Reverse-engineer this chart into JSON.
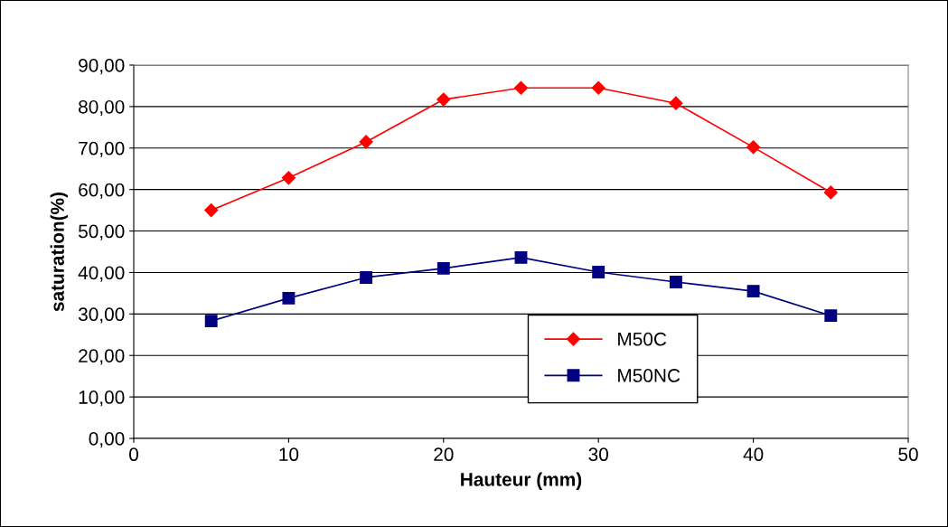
{
  "chart_data": {
    "type": "line",
    "xlabel": "Hauteur (mm)",
    "ylabel": "saturation(%)",
    "x": [
      5,
      10,
      15,
      20,
      25,
      30,
      35,
      40,
      45
    ],
    "series": [
      {
        "name": "M50C",
        "color": "#ff0000",
        "marker": "diamond",
        "values": [
          55.0,
          62.8,
          71.5,
          81.7,
          84.5,
          84.5,
          80.8,
          70.2,
          59.3
        ]
      },
      {
        "name": "M50NC",
        "color": "#000080",
        "marker": "square",
        "values": [
          28.3,
          33.8,
          38.8,
          41.0,
          43.6,
          40.1,
          37.7,
          35.5,
          29.6
        ]
      }
    ],
    "xlim": [
      0,
      50
    ],
    "xticks": [
      0,
      10,
      20,
      30,
      40,
      50
    ],
    "ylim": [
      0,
      90
    ],
    "yticks": [
      {
        "value": 0,
        "label": "0,00"
      },
      {
        "value": 10,
        "label": "10,00"
      },
      {
        "value": 20,
        "label": "20,00"
      },
      {
        "value": 30,
        "label": "30,00"
      },
      {
        "value": 40,
        "label": "40,00"
      },
      {
        "value": 50,
        "label": "50,00"
      },
      {
        "value": 60,
        "label": "60,00"
      },
      {
        "value": 70,
        "label": "70,00"
      },
      {
        "value": 80,
        "label": "80,00"
      },
      {
        "value": 90,
        "label": "90,00"
      }
    ],
    "grid": "y",
    "legend": "bottom right",
    "line_style": "solid"
  }
}
